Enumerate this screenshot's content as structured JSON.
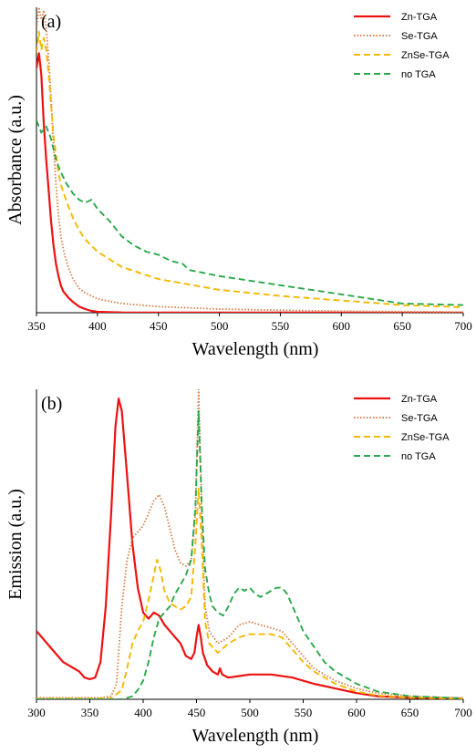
{
  "chart_data": [
    {
      "type": "line",
      "panel_label": "(a)",
      "xlabel": "Wavelength (nm)",
      "ylabel": "Absorbance (a.u.)",
      "xlim": [
        350,
        700
      ],
      "ylim": [
        0,
        1
      ],
      "xticks": [
        350,
        400,
        450,
        500,
        550,
        600,
        650,
        700
      ],
      "yticks_shown": false,
      "grid": false,
      "legend_position": "top-right",
      "series": [
        {
          "name": "Zn-TGA",
          "color": "#ee1111",
          "style": "solid",
          "points": [
            [
              350,
              0.8
            ],
            [
              352,
              0.85
            ],
            [
              354,
              0.78
            ],
            [
              356,
              0.62
            ],
            [
              358,
              0.5
            ],
            [
              360,
              0.4
            ],
            [
              362,
              0.3
            ],
            [
              364,
              0.22
            ],
            [
              366,
              0.16
            ],
            [
              368,
              0.12
            ],
            [
              370,
              0.09
            ],
            [
              372,
              0.07
            ],
            [
              376,
              0.05
            ],
            [
              380,
              0.035
            ],
            [
              385,
              0.02
            ],
            [
              390,
              0.012
            ],
            [
              395,
              0.006
            ],
            [
              400,
              0.003
            ],
            [
              420,
              0.001
            ],
            [
              700,
              0.0
            ]
          ]
        },
        {
          "name": "Se-TGA",
          "color": "#d8814a",
          "style": "dotted",
          "points": [
            [
              350,
              0.93
            ],
            [
              352,
              1.0
            ],
            [
              354,
              0.96
            ],
            [
              356,
              0.99
            ],
            [
              358,
              0.93
            ],
            [
              360,
              0.83
            ],
            [
              362,
              0.7
            ],
            [
              364,
              0.55
            ],
            [
              366,
              0.42
            ],
            [
              368,
              0.32
            ],
            [
              370,
              0.25
            ],
            [
              373,
              0.19
            ],
            [
              376,
              0.15
            ],
            [
              380,
              0.11
            ],
            [
              385,
              0.08
            ],
            [
              390,
              0.065
            ],
            [
              400,
              0.045
            ],
            [
              420,
              0.03
            ],
            [
              450,
              0.02
            ],
            [
              500,
              0.012
            ],
            [
              550,
              0.008
            ],
            [
              600,
              0.005
            ],
            [
              700,
              0.002
            ]
          ]
        },
        {
          "name": "ZnSe-TGA",
          "color": "#f5b800",
          "style": "dashed",
          "points": [
            [
              350,
              0.85
            ],
            [
              352,
              0.92
            ],
            [
              354,
              0.86
            ],
            [
              356,
              0.9
            ],
            [
              358,
              0.86
            ],
            [
              360,
              0.78
            ],
            [
              362,
              0.68
            ],
            [
              364,
              0.58
            ],
            [
              366,
              0.52
            ],
            [
              368,
              0.46
            ],
            [
              370,
              0.42
            ],
            [
              375,
              0.36
            ],
            [
              380,
              0.31
            ],
            [
              385,
              0.27
            ],
            [
              390,
              0.24
            ],
            [
              400,
              0.2
            ],
            [
              420,
              0.15
            ],
            [
              450,
              0.11
            ],
            [
              500,
              0.075
            ],
            [
              550,
              0.055
            ],
            [
              600,
              0.04
            ],
            [
              650,
              0.025
            ],
            [
              700,
              0.018
            ]
          ]
        },
        {
          "name": "no TGA",
          "color": "#2aa84a",
          "style": "dashed",
          "points": [
            [
              350,
              0.63
            ],
            [
              354,
              0.59
            ],
            [
              358,
              0.61
            ],
            [
              362,
              0.57
            ],
            [
              366,
              0.5
            ],
            [
              370,
              0.46
            ],
            [
              375,
              0.42
            ],
            [
              380,
              0.39
            ],
            [
              385,
              0.37
            ],
            [
              390,
              0.36
            ],
            [
              395,
              0.37
            ],
            [
              400,
              0.34
            ],
            [
              410,
              0.3
            ],
            [
              420,
              0.25
            ],
            [
              430,
              0.22
            ],
            [
              440,
              0.2
            ],
            [
              450,
              0.19
            ],
            [
              460,
              0.17
            ],
            [
              470,
              0.16
            ],
            [
              475,
              0.14
            ],
            [
              500,
              0.12
            ],
            [
              550,
              0.09
            ],
            [
              600,
              0.06
            ],
            [
              650,
              0.03
            ],
            [
              700,
              0.025
            ]
          ]
        }
      ]
    },
    {
      "type": "line",
      "panel_label": "(b)",
      "xlabel": "Wavelength (nm)",
      "ylabel": "Emission (a.u.)",
      "xlim": [
        300,
        700
      ],
      "ylim": [
        0,
        1
      ],
      "xticks": [
        300,
        350,
        400,
        450,
        500,
        550,
        600,
        650,
        700
      ],
      "yticks_shown": false,
      "grid": false,
      "legend_position": "top-right",
      "series": [
        {
          "name": "Zn-TGA",
          "color": "#ee1111",
          "style": "solid",
          "points": [
            [
              300,
              0.22
            ],
            [
              305,
              0.2
            ],
            [
              310,
              0.18
            ],
            [
              315,
              0.16
            ],
            [
              320,
              0.14
            ],
            [
              325,
              0.12
            ],
            [
              330,
              0.11
            ],
            [
              335,
              0.1
            ],
            [
              340,
              0.09
            ],
            [
              345,
              0.07
            ],
            [
              350,
              0.065
            ],
            [
              355,
              0.07
            ],
            [
              360,
              0.12
            ],
            [
              365,
              0.3
            ],
            [
              370,
              0.6
            ],
            [
              374,
              0.88
            ],
            [
              377,
              0.97
            ],
            [
              380,
              0.93
            ],
            [
              385,
              0.72
            ],
            [
              390,
              0.5
            ],
            [
              395,
              0.36
            ],
            [
              400,
              0.28
            ],
            [
              405,
              0.26
            ],
            [
              410,
              0.28
            ],
            [
              415,
              0.27
            ],
            [
              420,
              0.24
            ],
            [
              425,
              0.22
            ],
            [
              430,
              0.2
            ],
            [
              435,
              0.18
            ],
            [
              440,
              0.14
            ],
            [
              445,
              0.13
            ],
            [
              448,
              0.15
            ],
            [
              450,
              0.2
            ],
            [
              452,
              0.24
            ],
            [
              454,
              0.2
            ],
            [
              456,
              0.15
            ],
            [
              460,
              0.11
            ],
            [
              465,
              0.09
            ],
            [
              470,
              0.08
            ],
            [
              472,
              0.1
            ],
            [
              474,
              0.08
            ],
            [
              480,
              0.07
            ],
            [
              490,
              0.075
            ],
            [
              500,
              0.08
            ],
            [
              520,
              0.08
            ],
            [
              540,
              0.07
            ],
            [
              560,
              0.05
            ],
            [
              580,
              0.035
            ],
            [
              600,
              0.02
            ],
            [
              620,
              0.01
            ],
            [
              650,
              0.005
            ],
            [
              700,
              0.003
            ]
          ]
        },
        {
          "name": "Se-TGA",
          "color": "#d8814a",
          "style": "dotted",
          "points": [
            [
              300,
              0.005
            ],
            [
              360,
              0.005
            ],
            [
              370,
              0.01
            ],
            [
              375,
              0.05
            ],
            [
              380,
              0.3
            ],
            [
              385,
              0.45
            ],
            [
              390,
              0.52
            ],
            [
              395,
              0.54
            ],
            [
              400,
              0.56
            ],
            [
              405,
              0.6
            ],
            [
              410,
              0.64
            ],
            [
              415,
              0.66
            ],
            [
              420,
              0.62
            ],
            [
              425,
              0.55
            ],
            [
              430,
              0.48
            ],
            [
              435,
              0.44
            ],
            [
              440,
              0.43
            ],
            [
              445,
              0.45
            ],
            [
              449,
              0.6
            ],
            [
              452,
              1.0
            ],
            [
              455,
              0.6
            ],
            [
              458,
              0.3
            ],
            [
              462,
              0.22
            ],
            [
              470,
              0.18
            ],
            [
              480,
              0.2
            ],
            [
              490,
              0.24
            ],
            [
              500,
              0.25
            ],
            [
              510,
              0.24
            ],
            [
              520,
              0.23
            ],
            [
              530,
              0.22
            ],
            [
              540,
              0.18
            ],
            [
              550,
              0.14
            ],
            [
              560,
              0.1
            ],
            [
              580,
              0.06
            ],
            [
              600,
              0.035
            ],
            [
              620,
              0.02
            ],
            [
              650,
              0.01
            ],
            [
              700,
              0.003
            ]
          ]
        },
        {
          "name": "ZnSe-TGA",
          "color": "#f5b800",
          "style": "dashed",
          "points": [
            [
              300,
              0.002
            ],
            [
              370,
              0.003
            ],
            [
              380,
              0.03
            ],
            [
              385,
              0.1
            ],
            [
              390,
              0.18
            ],
            [
              395,
              0.22
            ],
            [
              400,
              0.25
            ],
            [
              405,
              0.32
            ],
            [
              410,
              0.4
            ],
            [
              413,
              0.45
            ],
            [
              416,
              0.42
            ],
            [
              420,
              0.35
            ],
            [
              425,
              0.31
            ],
            [
              430,
              0.3
            ],
            [
              435,
              0.29
            ],
            [
              440,
              0.3
            ],
            [
              445,
              0.33
            ],
            [
              449,
              0.5
            ],
            [
              452,
              0.68
            ],
            [
              455,
              0.5
            ],
            [
              458,
              0.25
            ],
            [
              462,
              0.18
            ],
            [
              470,
              0.15
            ],
            [
              480,
              0.18
            ],
            [
              490,
              0.2
            ],
            [
              500,
              0.21
            ],
            [
              510,
              0.21
            ],
            [
              520,
              0.21
            ],
            [
              530,
              0.2
            ],
            [
              540,
              0.16
            ],
            [
              550,
              0.12
            ],
            [
              560,
              0.09
            ],
            [
              580,
              0.05
            ],
            [
              600,
              0.025
            ],
            [
              620,
              0.012
            ],
            [
              650,
              0.005
            ],
            [
              700,
              0.002
            ]
          ]
        },
        {
          "name": "no TGA",
          "color": "#2aa84a",
          "style": "dashed",
          "points": [
            [
              300,
              0.0
            ],
            [
              380,
              0.0
            ],
            [
              390,
              0.01
            ],
            [
              395,
              0.03
            ],
            [
              400,
              0.06
            ],
            [
              405,
              0.12
            ],
            [
              410,
              0.2
            ],
            [
              415,
              0.26
            ],
            [
              420,
              0.28
            ],
            [
              425,
              0.3
            ],
            [
              430,
              0.34
            ],
            [
              435,
              0.37
            ],
            [
              440,
              0.4
            ],
            [
              445,
              0.45
            ],
            [
              449,
              0.62
            ],
            [
              452,
              0.93
            ],
            [
              455,
              0.62
            ],
            [
              458,
              0.42
            ],
            [
              462,
              0.34
            ],
            [
              465,
              0.3
            ],
            [
              470,
              0.28
            ],
            [
              475,
              0.27
            ],
            [
              480,
              0.3
            ],
            [
              485,
              0.34
            ],
            [
              490,
              0.36
            ],
            [
              495,
              0.35
            ],
            [
              500,
              0.36
            ],
            [
              505,
              0.34
            ],
            [
              510,
              0.33
            ],
            [
              520,
              0.35
            ],
            [
              525,
              0.36
            ],
            [
              530,
              0.36
            ],
            [
              535,
              0.34
            ],
            [
              540,
              0.3
            ],
            [
              545,
              0.26
            ],
            [
              550,
              0.22
            ],
            [
              560,
              0.17
            ],
            [
              570,
              0.12
            ],
            [
              580,
              0.09
            ],
            [
              600,
              0.05
            ],
            [
              620,
              0.025
            ],
            [
              650,
              0.01
            ],
            [
              700,
              0.003
            ]
          ]
        }
      ]
    }
  ]
}
